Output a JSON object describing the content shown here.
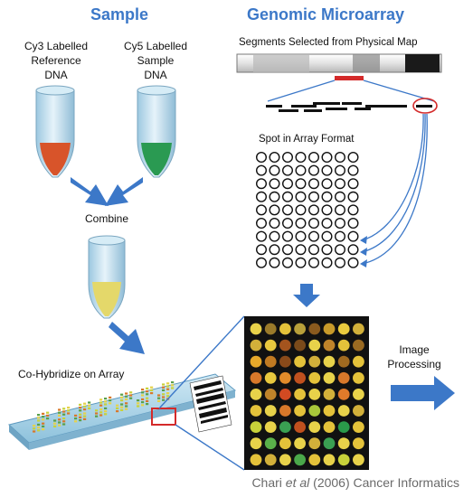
{
  "headings": {
    "sample": "Sample",
    "microarray": "Genomic Microarray"
  },
  "tubes": {
    "cy3": {
      "lines": [
        "Cy3 Labelled",
        "Reference",
        "DNA"
      ],
      "color": "#d8542a"
    },
    "cy5": {
      "lines": [
        "Cy5 Labelled",
        "Sample",
        "DNA"
      ],
      "color": "#2a9a52"
    },
    "combined": {
      "color": "#e4d86a"
    }
  },
  "steps": {
    "combine": "Combine",
    "segments": "Segments Selected from Physical Map",
    "spot_format": "Spot in Array Format",
    "hybridize": "Co-Hybridize on Array",
    "image_processing": [
      "Image",
      "Processing"
    ]
  },
  "citation": {
    "prefix": "Chari ",
    "italic": "et al",
    "suffix": " (2006) Cancer Informatics"
  },
  "colors": {
    "accent": "#3c78c8",
    "highlight": "#d42a2a",
    "chip_bg": "#111111"
  },
  "chip": {
    "rows": 9,
    "cols": 8,
    "spots": [
      "#e8d24a",
      "#9a7a2a",
      "#e4c23a",
      "#b8a03a",
      "#8a5a1e",
      "#c89a2a",
      "#eacb3e",
      "#d2b03a",
      "#d2b03a",
      "#e8c83e",
      "#a4541e",
      "#7a4a1a",
      "#e8d24a",
      "#c0842a",
      "#e4c23a",
      "#9a6a22",
      "#e6a82a",
      "#c07a22",
      "#8a4a1a",
      "#e4c23a",
      "#d2b03a",
      "#e8d24a",
      "#a06a20",
      "#e4c23a",
      "#d8782a",
      "#e8c83e",
      "#e08a2a",
      "#c0501e",
      "#e4c23a",
      "#e8d24a",
      "#d8782a",
      "#e4c23a",
      "#e8d24a",
      "#c0842a",
      "#d24a22",
      "#e4c23a",
      "#e8d24a",
      "#d2b03a",
      "#e07a2a",
      "#e8d24a",
      "#e4c23a",
      "#e8d24a",
      "#d8782a",
      "#e4c23a",
      "#a8c83a",
      "#e4c23a",
      "#e8d24a",
      "#d2b03a",
      "#c8d23a",
      "#e8d24a",
      "#3aa052",
      "#c0501e",
      "#e8d24a",
      "#e4c23a",
      "#2a9a4a",
      "#e4c23a",
      "#e8d24a",
      "#5ab04a",
      "#e4c23a",
      "#e8d24a",
      "#d2b03a",
      "#3aa052",
      "#e8d24a",
      "#e4c23a",
      "#e4c23a",
      "#d2b03a",
      "#e8d24a",
      "#4aa84a",
      "#e4c23a",
      "#e8d24a",
      "#c8d23a",
      "#e8d24a"
    ]
  }
}
